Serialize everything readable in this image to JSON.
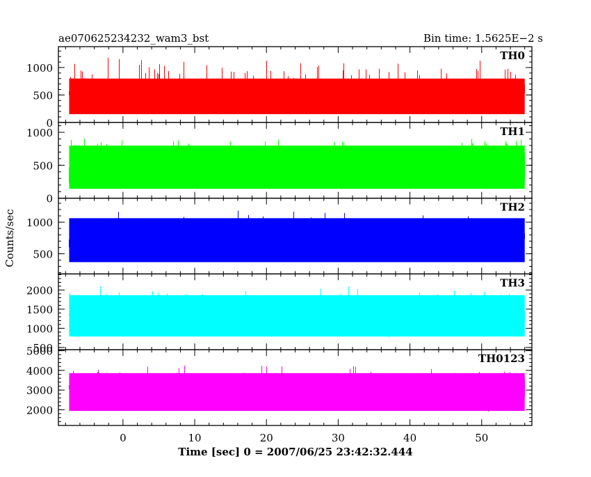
{
  "header": {
    "title": "ae070625234232_wam3_bst",
    "bin_time": "Bin time: 1.5625E−2 s"
  },
  "axes": {
    "ylabel": "Counts/sec",
    "xlabel": "Time [sec] 0 = 2007/06/25 23:42:32.444"
  },
  "chart_data": {
    "type": "line",
    "title": "ae070625234232_wam3_bst",
    "xlabel": "Time [sec] 0 = 2007/06/25 23:42:32.444",
    "ylabel": "Counts/sec",
    "xlim": [
      -9,
      57
    ],
    "xticks": [
      0,
      10,
      20,
      30,
      40,
      50
    ],
    "bin_time_s": 0.015625,
    "data_range_x": [
      -7.5,
      56
    ],
    "grid": false,
    "panels": [
      {
        "name": "TH0",
        "color": "#ff0000",
        "ylim": [
          0,
          1380
        ],
        "yticks": [
          0,
          500,
          1000
        ],
        "typical_range": [
          70,
          880
        ],
        "spike_max": 1380
      },
      {
        "name": "TH1",
        "color": "#00ff00",
        "ylim": [
          0,
          1150
        ],
        "yticks": [
          0,
          500,
          1000
        ],
        "typical_range": [
          60,
          880
        ],
        "spike_max": 1150
      },
      {
        "name": "TH2",
        "color": "#0000ff",
        "ylim": [
          180,
          1380
        ],
        "yticks": [
          500,
          1000
        ],
        "typical_range": [
          280,
          1150
        ],
        "spike_max": 1380
      },
      {
        "name": "TH3",
        "color": "#00ffff",
        "ylim": [
          440,
          2420
        ],
        "yticks": [
          500,
          1000,
          1500,
          2000
        ],
        "typical_range": [
          650,
          2000
        ],
        "spike_max": 2420
      },
      {
        "name": "TH0123",
        "color": "#ff00ff",
        "ylim": [
          1200,
          5050
        ],
        "yticks": [
          2000,
          3000,
          4000,
          5000
        ],
        "typical_range": [
          1700,
          4100
        ],
        "spike_max": 4900
      }
    ]
  }
}
